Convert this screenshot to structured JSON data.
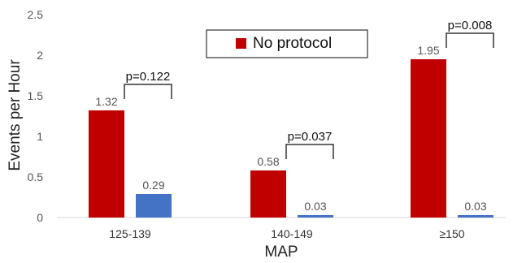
{
  "chart_data": {
    "type": "bar",
    "title": "",
    "xlabel": "MAP",
    "ylabel": "Events per Hour",
    "ylim": [
      0,
      2.5
    ],
    "yticks": [
      "0",
      "0.5",
      "1",
      "1.5",
      "2",
      "2.5"
    ],
    "categories": [
      "125-139",
      "140-149",
      "≥150"
    ],
    "series": [
      {
        "name": "No protocol",
        "values": [
          1.32,
          0.58,
          1.95
        ],
        "labels": [
          "1.32",
          "0.58",
          "1.95"
        ],
        "color": "#c00000"
      },
      {
        "values": [
          0.29,
          0.03,
          0.03
        ],
        "labels": [
          "0.29",
          "0.03",
          "0.03"
        ],
        "color": "#4472c4"
      }
    ],
    "annotations": [
      {
        "category": "125-139",
        "text": "p=0.122"
      },
      {
        "category": "140-149",
        "text": "p=0.037"
      },
      {
        "category": "≥150",
        "text": "p=0.008"
      }
    ],
    "legend": {
      "position": "top-center",
      "entries": [
        {
          "label": "No protocol",
          "color": "#c00000"
        }
      ]
    },
    "grid": false
  }
}
